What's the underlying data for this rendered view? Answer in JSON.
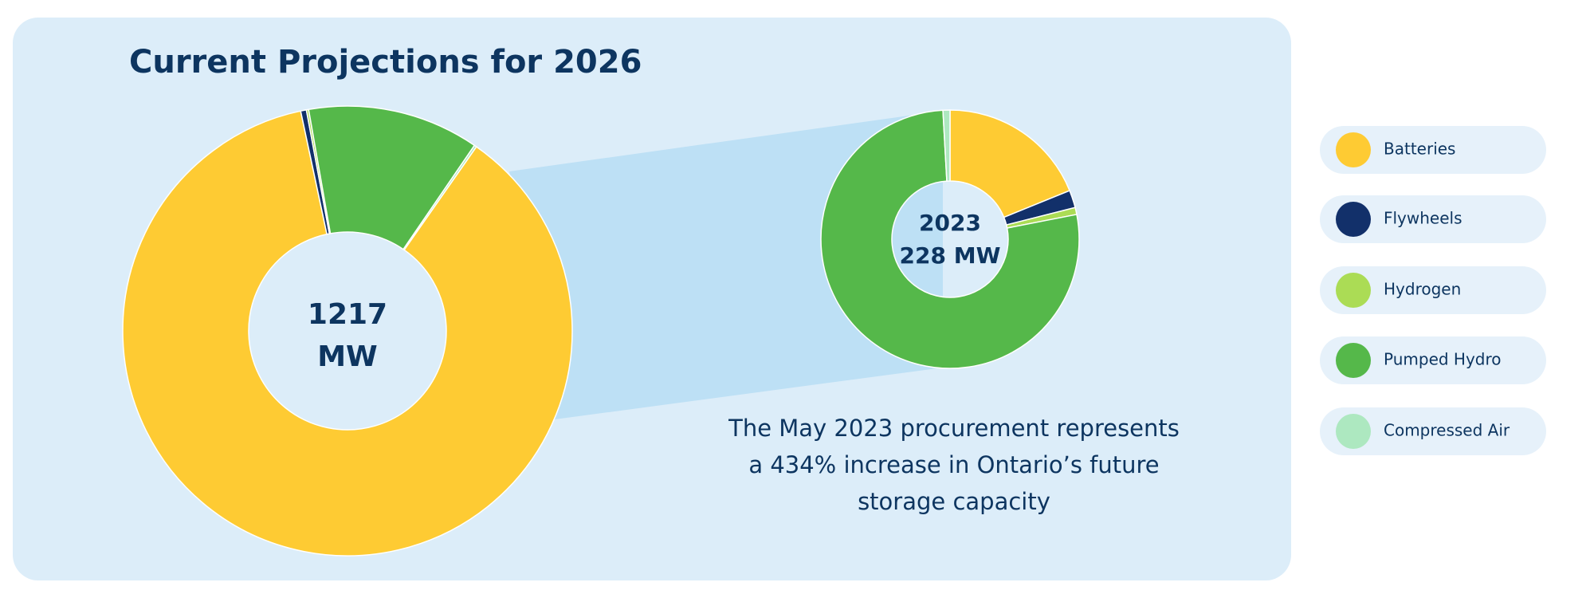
{
  "chart_data": [
    {
      "type": "donut",
      "title": "Current Projections for 2026",
      "center_label": [
        "1217",
        "MW"
      ],
      "values": [
        1058,
        5,
        2,
        150,
        2
      ],
      "start_angle": 35
    },
    {
      "type": "donut",
      "center_label": [
        "2023",
        "228 MW"
      ],
      "values": [
        43,
        5,
        2,
        176,
        2
      ],
      "start_angle": 0,
      "annotation": [
        "The May 2023 procurement represents",
        "a 434% increase in Ontario’s future",
        "storage capacity"
      ]
    }
  ],
  "legend": {
    "items": [
      {
        "name": "Batteries",
        "color": "#fecb33"
      },
      {
        "name": "Flywheels",
        "color": "#12306a"
      },
      {
        "name": "Hydrogen",
        "color": "#abdc55"
      },
      {
        "name": "Pumped Hydro",
        "color": "#55b84a"
      },
      {
        "name": "Compressed Air",
        "color": "#ade8c0"
      }
    ]
  }
}
